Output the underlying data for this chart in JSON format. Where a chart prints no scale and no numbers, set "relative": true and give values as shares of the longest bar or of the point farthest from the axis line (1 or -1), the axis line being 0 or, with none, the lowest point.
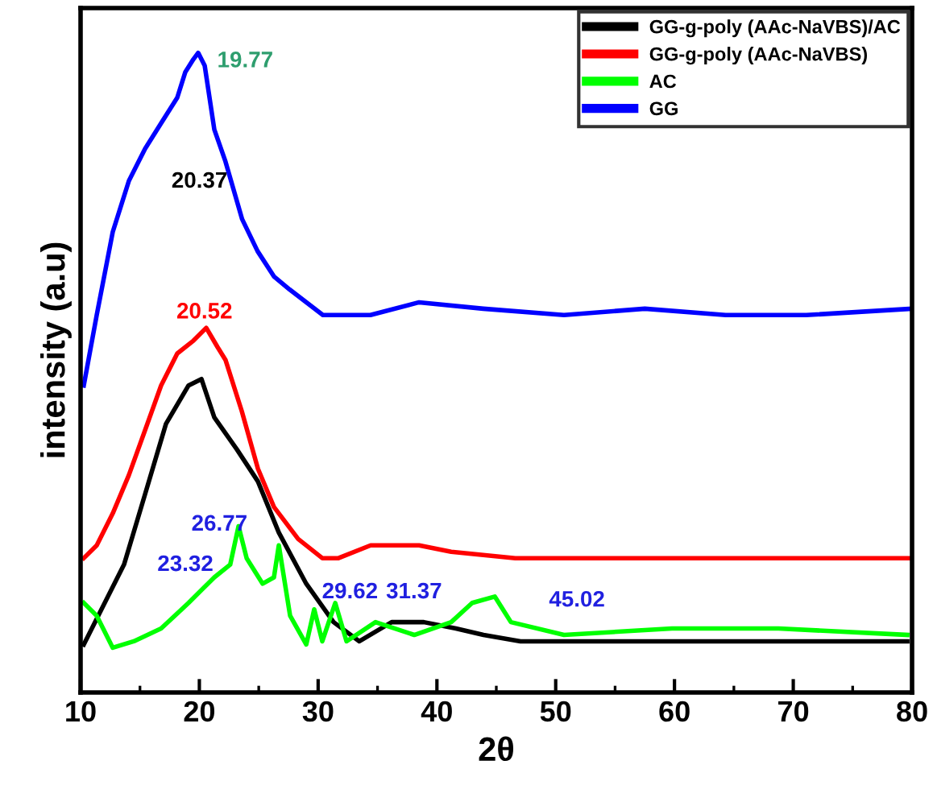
{
  "chart_data": {
    "type": "line",
    "relative": true,
    "xlabel": "2θ",
    "ylabel": "intensity (a.u)",
    "xlim": [
      10,
      80
    ],
    "xticks": [
      10,
      20,
      30,
      40,
      50,
      60,
      70,
      80
    ],
    "legend": "top right",
    "grid": false,
    "marker": "none",
    "line_style": "solid",
    "series": [
      {
        "name": "GG-g-poly (AAc-NaVBS)/AC",
        "color": "#000000",
        "x": [
          10.27,
          11.76,
          13.66,
          15.43,
          17.19,
          19.09,
          20.18,
          21.26,
          23.16,
          24.93,
          26.69,
          29.0,
          31.3,
          33.47,
          36.19,
          38.9,
          41.6,
          43.92,
          47.04,
          55.2,
          64.3,
          79.6
        ],
        "values": [
          0.075,
          0.13,
          0.2,
          0.31,
          0.42,
          0.48,
          0.49,
          0.43,
          0.38,
          0.33,
          0.25,
          0.17,
          0.11,
          0.08,
          0.11,
          0.11,
          0.1,
          0.09,
          0.08,
          0.08,
          0.08,
          0.08
        ]
      },
      {
        "name": "GG-g-poly (AAc-NaVBS)",
        "color": "#ff0000",
        "x": [
          10.27,
          11.36,
          12.71,
          14.07,
          15.43,
          16.78,
          18.14,
          19.5,
          20.58,
          21.53,
          22.2,
          23.57,
          24.93,
          26.28,
          28.32,
          30.35,
          31.71,
          34.42,
          38.5,
          41.2,
          46.6,
          57.5,
          71.1,
          80
        ],
        "values": [
          0.21,
          0.23,
          0.28,
          0.34,
          0.41,
          0.48,
          0.53,
          0.55,
          0.57,
          0.54,
          0.52,
          0.44,
          0.35,
          0.29,
          0.24,
          0.21,
          0.21,
          0.23,
          0.23,
          0.22,
          0.21,
          0.21,
          0.21,
          0.21
        ]
      },
      {
        "name": "AC",
        "color": "#00ff00",
        "x": [
          10.27,
          11.36,
          12.71,
          14.48,
          16.78,
          19.09,
          21.26,
          22.6,
          23.3,
          23.98,
          25.33,
          26.28,
          26.69,
          27.64,
          29.0,
          29.67,
          30.35,
          31.44,
          32.39,
          34.83,
          38.09,
          41.2,
          42.97,
          44.87,
          46.23,
          50.7,
          59.8,
          68.75,
          79.6
        ],
        "values": [
          0.14,
          0.12,
          0.07,
          0.08,
          0.1,
          0.14,
          0.18,
          0.2,
          0.26,
          0.21,
          0.17,
          0.18,
          0.23,
          0.12,
          0.075,
          0.13,
          0.08,
          0.14,
          0.08,
          0.11,
          0.09,
          0.11,
          0.14,
          0.15,
          0.11,
          0.09,
          0.1,
          0.1,
          0.09
        ]
      },
      {
        "name": "GG",
        "color": "#0000ff",
        "x": [
          10.27,
          11.36,
          12.71,
          14.07,
          15.43,
          16.78,
          18.14,
          18.82,
          19.5,
          19.9,
          20.45,
          21.26,
          22.2,
          23.6,
          24.9,
          26.3,
          27.6,
          30.4,
          34.4,
          38.5,
          43.9,
          50.7,
          57.5,
          64.3,
          71.1,
          80
        ],
        "values": [
          0.48,
          0.59,
          0.72,
          0.8,
          0.85,
          0.89,
          0.93,
          0.97,
          0.99,
          1.0,
          0.98,
          0.88,
          0.83,
          0.74,
          0.69,
          0.65,
          0.63,
          0.59,
          0.59,
          0.61,
          0.6,
          0.59,
          0.6,
          0.59,
          0.59,
          0.6
        ]
      }
    ],
    "annotations": [
      "19.77",
      "20.37",
      "20.52",
      "26.77",
      "23.32",
      "29.62",
      "31.37",
      "45.02"
    ]
  }
}
